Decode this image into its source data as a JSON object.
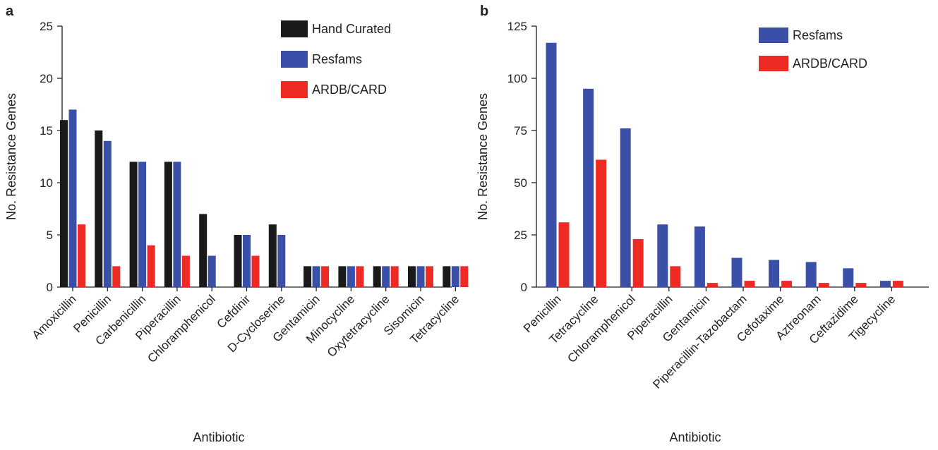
{
  "chart_data": [
    {
      "panel": "a",
      "type": "bar",
      "title": "",
      "xlabel": "Antibiotic",
      "ylabel": "No. Resistance Genes",
      "ylim": [
        0,
        25
      ],
      "yticks": [
        0,
        5,
        10,
        15,
        20,
        25
      ],
      "grid": false,
      "legend_position": "top-right",
      "categories": [
        "Amoxicillin",
        "Penicillin",
        "Carbenicillin",
        "Piperacillin",
        "Chloramphenicol",
        "Cefdinir",
        "D-Cycloserine",
        "Gentamicin",
        "Minocycline",
        "Oxytetracycline",
        "Sisomicin",
        "Tetracycline"
      ],
      "series": [
        {
          "name": "Hand Curated",
          "color": "#1a1a1a",
          "values": [
            16,
            15,
            12,
            12,
            7,
            5,
            6,
            2,
            2,
            2,
            2,
            2
          ]
        },
        {
          "name": "Resfams",
          "color": "#3a50a8",
          "values": [
            17,
            14,
            12,
            12,
            3,
            5,
            5,
            2,
            2,
            2,
            2,
            2
          ]
        },
        {
          "name": "ARDB/CARD",
          "color": "#ee2a24",
          "values": [
            6,
            2,
            4,
            3,
            0,
            3,
            0,
            2,
            2,
            2,
            2,
            2
          ]
        }
      ]
    },
    {
      "panel": "b",
      "type": "bar",
      "title": "",
      "xlabel": "Antibiotic",
      "ylabel": "No. Resistance Genes",
      "ylim": [
        0,
        125
      ],
      "yticks": [
        0,
        25,
        50,
        75,
        100,
        125
      ],
      "grid": false,
      "legend_position": "top-right",
      "categories": [
        "Penicillin",
        "Tetracycline",
        "Chloramphenicol",
        "Piperacillin",
        "Gentamicin",
        "Piperacillin-Tazobactam",
        "Cefotaxime",
        "Aztreonam",
        "Ceftazidime",
        "Tigecycline"
      ],
      "series": [
        {
          "name": "Resfams",
          "color": "#3a50a8",
          "values": [
            117,
            95,
            76,
            30,
            29,
            14,
            13,
            12,
            9,
            3
          ]
        },
        {
          "name": "ARDB/CARD",
          "color": "#ee2a24",
          "values": [
            31,
            61,
            23,
            10,
            2,
            3,
            3,
            2,
            2,
            3
          ]
        }
      ]
    }
  ]
}
